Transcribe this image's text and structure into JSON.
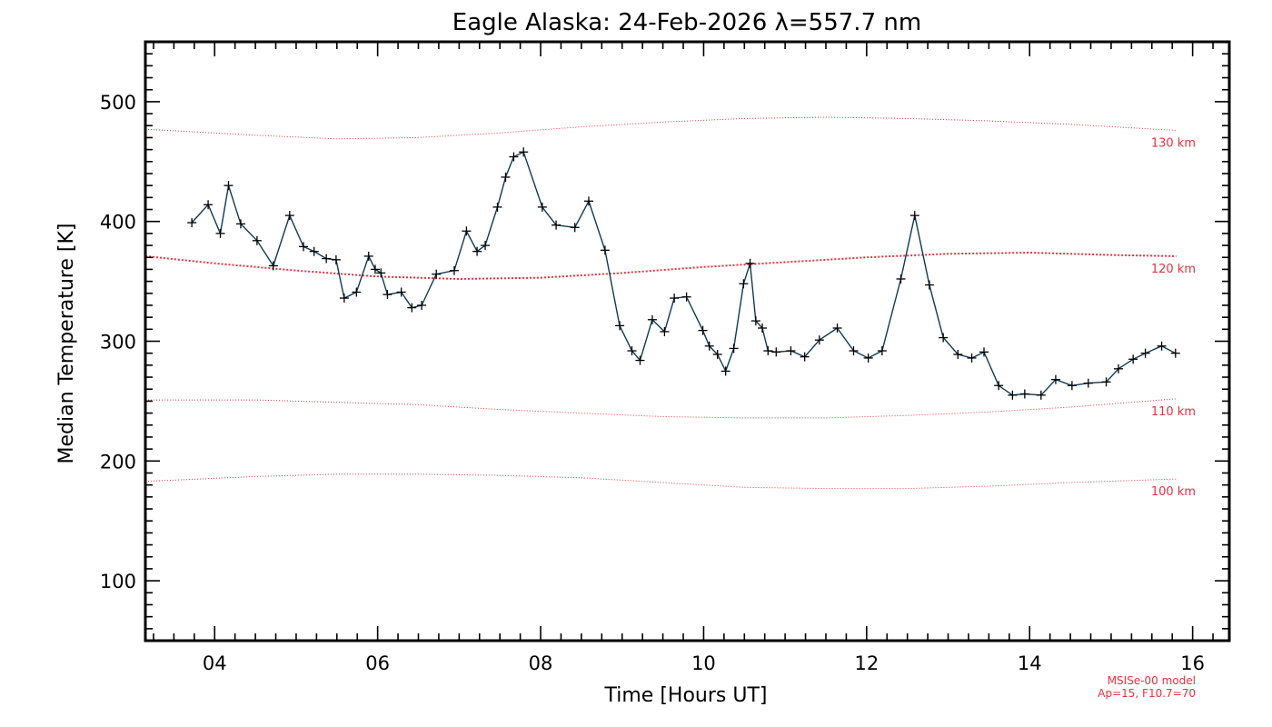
{
  "chart_data": {
    "type": "line",
    "title": "Eagle Alaska: 24-Feb-2026 λ=557.7 nm",
    "xlabel": "Time [Hours UT]",
    "ylabel": "Median Temperature [K]",
    "xlim": [
      3.15,
      16.45
    ],
    "ylim": [
      50,
      550
    ],
    "x_ticks": [
      4,
      6,
      8,
      10,
      12,
      14,
      16
    ],
    "x_tick_labels": [
      "04",
      "06",
      "08",
      "10",
      "12",
      "14",
      "16"
    ],
    "y_ticks": [
      100,
      200,
      300,
      400,
      500
    ],
    "y_tick_labels": [
      "100",
      "200",
      "300",
      "400",
      "500"
    ],
    "series": [
      {
        "name": "Median Temperature",
        "color": "#0d3b55",
        "marker_color": "#000000",
        "x": [
          3.72,
          3.92,
          4.07,
          4.17,
          4.32,
          4.52,
          4.72,
          4.92,
          5.09,
          5.22,
          5.37,
          5.49,
          5.59,
          5.74,
          5.89,
          5.97,
          6.04,
          6.12,
          6.29,
          6.42,
          6.54,
          6.72,
          6.94,
          7.09,
          7.22,
          7.32,
          7.47,
          7.57,
          7.67,
          7.79,
          8.02,
          8.19,
          8.42,
          8.59,
          8.79,
          8.97,
          9.12,
          9.22,
          9.37,
          9.52,
          9.64,
          9.79,
          9.99,
          10.07,
          10.17,
          10.27,
          10.37,
          10.49,
          10.57,
          10.64,
          10.72,
          10.79,
          10.89,
          11.07,
          11.24,
          11.42,
          11.64,
          11.84,
          12.02,
          12.19,
          12.42,
          12.59,
          12.77,
          12.94,
          13.12,
          13.29,
          13.44,
          13.62,
          13.79,
          13.94,
          14.14,
          14.32,
          14.52,
          14.72,
          14.94,
          15.09,
          15.27,
          15.42,
          15.62,
          15.79
        ],
        "y": [
          399,
          414,
          390,
          430,
          398,
          384,
          363,
          405,
          379,
          375,
          369,
          368,
          336,
          341,
          371,
          360,
          357,
          339,
          341,
          328,
          330,
          356,
          359,
          392,
          375,
          380,
          412,
          437,
          454,
          458,
          412,
          397,
          395,
          417,
          376,
          313,
          292,
          284,
          318,
          308,
          336,
          337,
          309,
          296,
          289,
          275,
          294,
          348,
          365,
          317,
          311,
          292,
          291,
          292,
          287,
          301,
          311,
          292,
          286,
          292,
          352,
          405,
          347,
          303,
          289,
          286,
          291,
          263,
          255,
          256,
          255,
          268,
          263,
          265,
          266,
          277,
          285,
          290,
          296,
          290
        ]
      }
    ],
    "model_curves": [
      {
        "label": "130 km",
        "color": "#e8323c",
        "x": [
          3.15,
          4.5,
          5.5,
          6.5,
          7.5,
          8.5,
          9.5,
          10.5,
          11.5,
          12.5,
          13.5,
          14.5,
          15.8
        ],
        "y": [
          477,
          472,
          469,
          470,
          474,
          479,
          483,
          486,
          487,
          486,
          484,
          481,
          476
        ]
      },
      {
        "label": "120 km",
        "color": "#e8323c",
        "x": [
          3.15,
          4.0,
          5.0,
          6.0,
          7.0,
          8.0,
          9.0,
          10.0,
          11.0,
          12.0,
          13.0,
          14.0,
          15.0,
          15.8
        ],
        "y": [
          371,
          365,
          359,
          354,
          352,
          353,
          357,
          362,
          366,
          370,
          373,
          374,
          372,
          371
        ]
      },
      {
        "label": "110 km",
        "color": "#e8323c",
        "x": [
          3.15,
          4.5,
          5.5,
          6.5,
          7.5,
          8.5,
          9.5,
          10.5,
          11.5,
          12.5,
          13.5,
          14.5,
          15.8
        ],
        "y": [
          251,
          251,
          249,
          247,
          243,
          240,
          237,
          236,
          236,
          238,
          241,
          245,
          252
        ]
      },
      {
        "label": "100 km",
        "color": "#e8323c",
        "x": [
          3.15,
          4.5,
          5.5,
          6.5,
          7.5,
          8.5,
          9.5,
          10.5,
          11.5,
          12.5,
          13.5,
          14.5,
          15.8
        ],
        "y": [
          183,
          187,
          189,
          189,
          188,
          186,
          182,
          178,
          177,
          177,
          179,
          182,
          185
        ]
      }
    ],
    "notes": [
      "MSISe-00 model",
      "Ap=15, F10.7=70"
    ],
    "grid": false,
    "legend": "none"
  }
}
